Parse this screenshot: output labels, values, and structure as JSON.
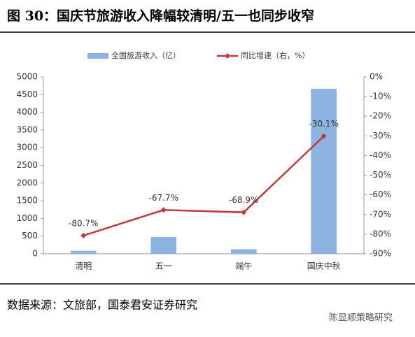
{
  "chart_data": {
    "type": "bar",
    "title": "图 30：国庆节旅游收入降幅较清明/五一也同步收窄",
    "categories": [
      "清明",
      "五一",
      "端午",
      "国庆中秋"
    ],
    "series": [
      {
        "name": "全国旅游收入（亿）",
        "type": "bar",
        "color": "#8db3e2",
        "values": [
          87,
          475,
          130,
          4665
        ]
      },
      {
        "name": "同比增速（右，%）",
        "type": "line",
        "axis": "y2",
        "color": "#c0393b",
        "values": [
          -80.7,
          -67.7,
          -68.9,
          -30.1
        ],
        "value_labels": [
          "-80.7%",
          "-67.7%",
          "-68.9%",
          "-30.1%"
        ]
      }
    ],
    "ylim": [
      0,
      5000
    ],
    "yticks": [
      0,
      500,
      1000,
      1500,
      2000,
      2500,
      3000,
      3500,
      4000,
      4500,
      5000
    ],
    "y2lim": [
      -90,
      0
    ],
    "y2ticks": [
      {
        "value": 0,
        "label": "0%"
      },
      {
        "value": -10,
        "label": "-10%"
      },
      {
        "value": -20,
        "label": "-20%"
      },
      {
        "value": -30,
        "label": "-30%"
      },
      {
        "value": -40,
        "label": "-40%"
      },
      {
        "value": -50,
        "label": "-50%"
      },
      {
        "value": -60,
        "label": "-60%"
      },
      {
        "value": -70,
        "label": "-70%"
      },
      {
        "value": -80,
        "label": "-80%"
      },
      {
        "value": -90,
        "label": "-90%"
      }
    ],
    "grid": false,
    "legend": "top"
  },
  "footer": {
    "source": "数据来源：文旅部，国泰君安证券研究",
    "watermark": "陈显顺策略研究"
  }
}
